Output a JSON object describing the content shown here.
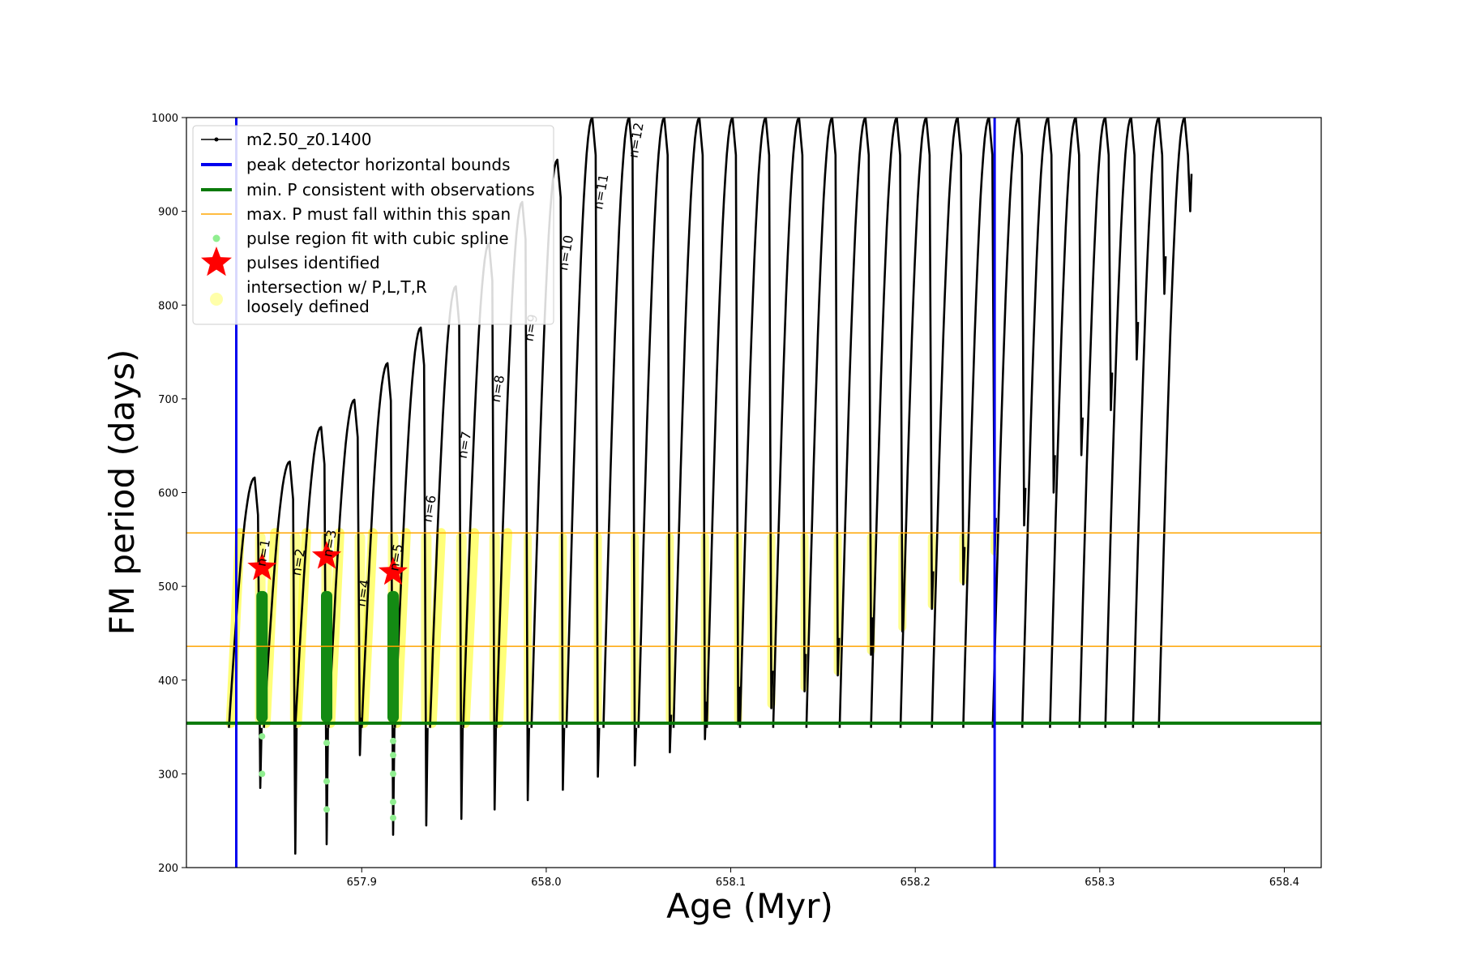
{
  "chart_data": {
    "type": "line",
    "title": "",
    "xlabel": "Age (Myr)",
    "ylabel": "FM period (days)",
    "xlim": [
      657.805,
      658.42
    ],
    "ylim": [
      200,
      1000
    ],
    "x_ticks": [
      {
        "value": 657.9,
        "label": "657.9"
      },
      {
        "value": 658.0,
        "label": "658.0"
      },
      {
        "value": 658.1,
        "label": "658.1"
      },
      {
        "value": 658.2,
        "label": "658.2"
      },
      {
        "value": 658.3,
        "label": "658.3"
      },
      {
        "value": 658.4,
        "label": "658.4"
      }
    ],
    "y_ticks": [
      {
        "value": 200,
        "label": "200"
      },
      {
        "value": 300,
        "label": "300"
      },
      {
        "value": 400,
        "label": "400"
      },
      {
        "value": 500,
        "label": "500"
      },
      {
        "value": 600,
        "label": "600"
      },
      {
        "value": 700,
        "label": "700"
      },
      {
        "value": 800,
        "label": "800"
      },
      {
        "value": 900,
        "label": "900"
      },
      {
        "value": 1000,
        "label": "1000"
      }
    ],
    "grid": false,
    "legend_placement": "top-left",
    "legend": [
      {
        "label": "m2.50_z0.1400",
        "kind": "line-dot",
        "color": "#000000"
      },
      {
        "label": "peak detector horizontal bounds",
        "kind": "thick-line",
        "color": "#0000ee"
      },
      {
        "label": "min. P consistent with observations",
        "kind": "thick-line",
        "color": "#0a7a0a"
      },
      {
        "label": "max. P must fall within this span",
        "kind": "thin-line",
        "color": "#ffa500"
      },
      {
        "label": "pulse region fit with cubic spline",
        "kind": "dot",
        "color": "#90ee90"
      },
      {
        "label": "pulses identified",
        "kind": "star",
        "color": "#ff0000"
      },
      {
        "label": "intersection w/ P,L,T,R\nloosely defined",
        "kind": "circle",
        "color": "#ffffaa"
      }
    ],
    "series": [
      {
        "name": "m2.50_z0.1400",
        "color": "#000000",
        "pulses": [
          {
            "x": 657.845,
            "peak": 616,
            "min": 285
          },
          {
            "x": 657.864,
            "peak": 633,
            "min": 215
          },
          {
            "x": 657.881,
            "peak": 670,
            "min": 225
          },
          {
            "x": 657.899,
            "peak": 699,
            "min": 320
          },
          {
            "x": 657.917,
            "peak": 738,
            "min": 235
          },
          {
            "x": 657.935,
            "peak": 776,
            "min": 245
          },
          {
            "x": 657.954,
            "peak": 820,
            "min": 252
          },
          {
            "x": 657.972,
            "peak": 866,
            "min": 262
          },
          {
            "x": 657.99,
            "peak": 910,
            "min": 272
          },
          {
            "x": 658.009,
            "peak": 955,
            "min": 283
          },
          {
            "x": 658.028,
            "peak": 1000,
            "min": 297
          },
          {
            "x": 658.048,
            "peak": 1000,
            "min": 309
          },
          {
            "x": 658.067,
            "peak": 1000,
            "min": 323
          },
          {
            "x": 658.086,
            "peak": 1000,
            "min": 337
          },
          {
            "x": 658.104,
            "peak": 1000,
            "min": 353
          },
          {
            "x": 658.122,
            "peak": 1000,
            "min": 370
          },
          {
            "x": 658.14,
            "peak": 1000,
            "min": 388
          },
          {
            "x": 658.158,
            "peak": 1000,
            "min": 405
          },
          {
            "x": 658.176,
            "peak": 1000,
            "min": 427
          },
          {
            "x": 658.193,
            "peak": 1000,
            "min": 452
          },
          {
            "x": 658.209,
            "peak": 1000,
            "min": 476
          },
          {
            "x": 658.226,
            "peak": 1000,
            "min": 502
          },
          {
            "x": 658.243,
            "peak": 1000,
            "min": 533
          },
          {
            "x": 658.259,
            "peak": 1000,
            "min": 565
          },
          {
            "x": 658.275,
            "peak": 1000,
            "min": 600
          },
          {
            "x": 658.29,
            "peak": 1000,
            "min": 640
          },
          {
            "x": 658.306,
            "peak": 1000,
            "min": 688
          },
          {
            "x": 658.32,
            "peak": 1000,
            "min": 742
          },
          {
            "x": 658.335,
            "peak": 1000,
            "min": 812
          },
          {
            "x": 658.349,
            "peak": 1000,
            "min": 900
          }
        ]
      }
    ],
    "hlines": [
      {
        "y": 354,
        "color": "#0a7a0a",
        "width": 4
      },
      {
        "y": 436,
        "color": "#ffa500",
        "width": 1.5
      },
      {
        "y": 557,
        "color": "#ffa500",
        "width": 1.5
      }
    ],
    "vlines": [
      {
        "x": 657.832,
        "color": "#0000ee",
        "width": 3
      },
      {
        "x": 658.243,
        "color": "#0000ee",
        "width": 3
      }
    ],
    "stars": [
      {
        "x": 657.846,
        "y": 520
      },
      {
        "x": 657.881,
        "y": 532
      },
      {
        "x": 657.917,
        "y": 515
      }
    ],
    "green_regions": [
      {
        "x": 657.846,
        "top": 495,
        "bottom": 355,
        "outliers": [
          340,
          300
        ]
      },
      {
        "x": 657.881,
        "top": 495,
        "bottom": 355,
        "outliers": [
          333,
          292,
          262
        ]
      },
      {
        "x": 657.917,
        "top": 495,
        "bottom": 355,
        "outliers": [
          335,
          320,
          300,
          270,
          253
        ]
      }
    ],
    "n_labels": [
      {
        "text": "n=1",
        "x": 657.849,
        "y": 535
      },
      {
        "text": "n=2",
        "x": 657.868,
        "y": 525
      },
      {
        "text": "n=3",
        "x": 657.885,
        "y": 545
      },
      {
        "text": "n=4",
        "x": 657.903,
        "y": 492
      },
      {
        "text": "n=5",
        "x": 657.921,
        "y": 530
      },
      {
        "text": "n=6",
        "x": 657.939,
        "y": 582
      },
      {
        "text": "n=7",
        "x": 657.958,
        "y": 650
      },
      {
        "text": "n=8",
        "x": 657.976,
        "y": 710
      },
      {
        "text": "n=9",
        "x": 657.994,
        "y": 775
      },
      {
        "text": "n=10",
        "x": 658.013,
        "y": 855
      },
      {
        "text": "n=11",
        "x": 658.032,
        "y": 920
      },
      {
        "text": "n=12",
        "x": 658.051,
        "y": 975
      }
    ]
  }
}
